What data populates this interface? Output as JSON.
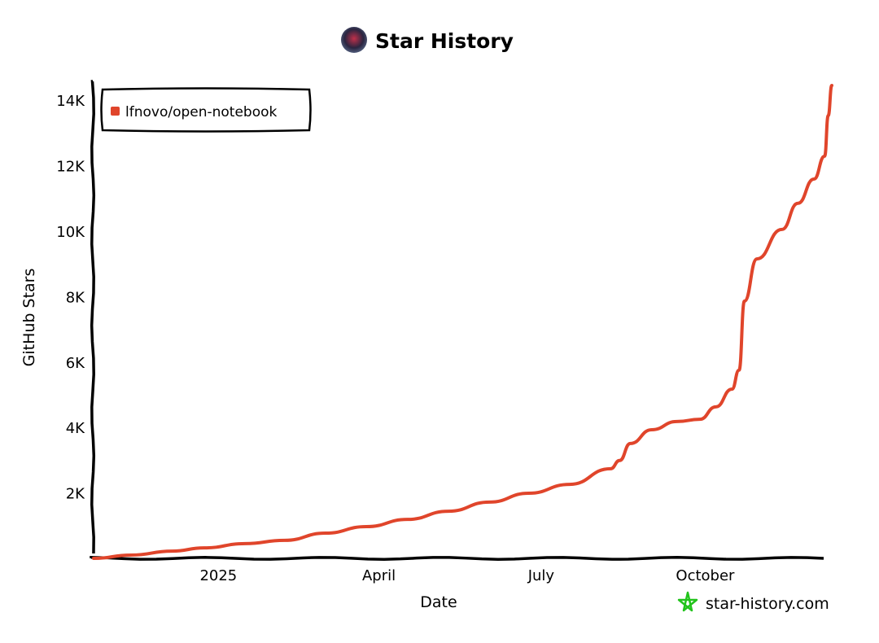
{
  "chart_data": {
    "type": "line",
    "title": "Star History",
    "xlabel": "Date",
    "ylabel": "GitHub Stars",
    "x_tick_labels": [
      {
        "date": "2025-01-01",
        "label": "2025"
      },
      {
        "date": "2025-04-01",
        "label": "April"
      },
      {
        "date": "2025-07-01",
        "label": "July"
      },
      {
        "date": "2025-10-01",
        "label": "October"
      }
    ],
    "y_ticks": [
      2000,
      4000,
      6000,
      8000,
      10000,
      12000,
      14000
    ],
    "y_tick_labels": [
      "2K",
      "4K",
      "6K",
      "8K",
      "10K",
      "12K",
      "14K"
    ],
    "xlim": [
      "2024-10-23",
      "2025-12-11"
    ],
    "ylim": [
      0,
      14450
    ],
    "grid": false,
    "legend_placement": "top-left",
    "series": [
      {
        "name": "lfnovo/open-notebook",
        "color": "#e0452b",
        "points": [
          [
            "2024-10-23",
            0
          ],
          [
            "2024-11-13",
            100
          ],
          [
            "2024-12-06",
            220
          ],
          [
            "2024-12-24",
            320
          ],
          [
            "2025-01-16",
            450
          ],
          [
            "2025-02-07",
            550
          ],
          [
            "2025-03-02",
            770
          ],
          [
            "2025-03-25",
            970
          ],
          [
            "2025-04-17",
            1190
          ],
          [
            "2025-05-10",
            1440
          ],
          [
            "2025-06-02",
            1720
          ],
          [
            "2025-06-24",
            1990
          ],
          [
            "2025-07-17",
            2260
          ],
          [
            "2025-08-09",
            2740
          ],
          [
            "2025-08-14",
            2990
          ],
          [
            "2025-08-20",
            3510
          ],
          [
            "2025-09-01",
            3930
          ],
          [
            "2025-09-15",
            4180
          ],
          [
            "2025-09-28",
            4250
          ],
          [
            "2025-10-07",
            4630
          ],
          [
            "2025-10-16",
            5170
          ],
          [
            "2025-10-20",
            5750
          ],
          [
            "2025-10-23",
            7860
          ],
          [
            "2025-10-30",
            9150
          ],
          [
            "2025-11-13",
            10050
          ],
          [
            "2025-11-22",
            10850
          ],
          [
            "2025-12-01",
            11590
          ],
          [
            "2025-12-07",
            12290
          ],
          [
            "2025-12-09",
            13530
          ],
          [
            "2025-12-11",
            14450
          ]
        ]
      }
    ]
  },
  "watermark": {
    "text": "star-history.com",
    "icon": "star-icon",
    "color": "#22c31c"
  },
  "avatar": {
    "icon": "avatar-image"
  }
}
